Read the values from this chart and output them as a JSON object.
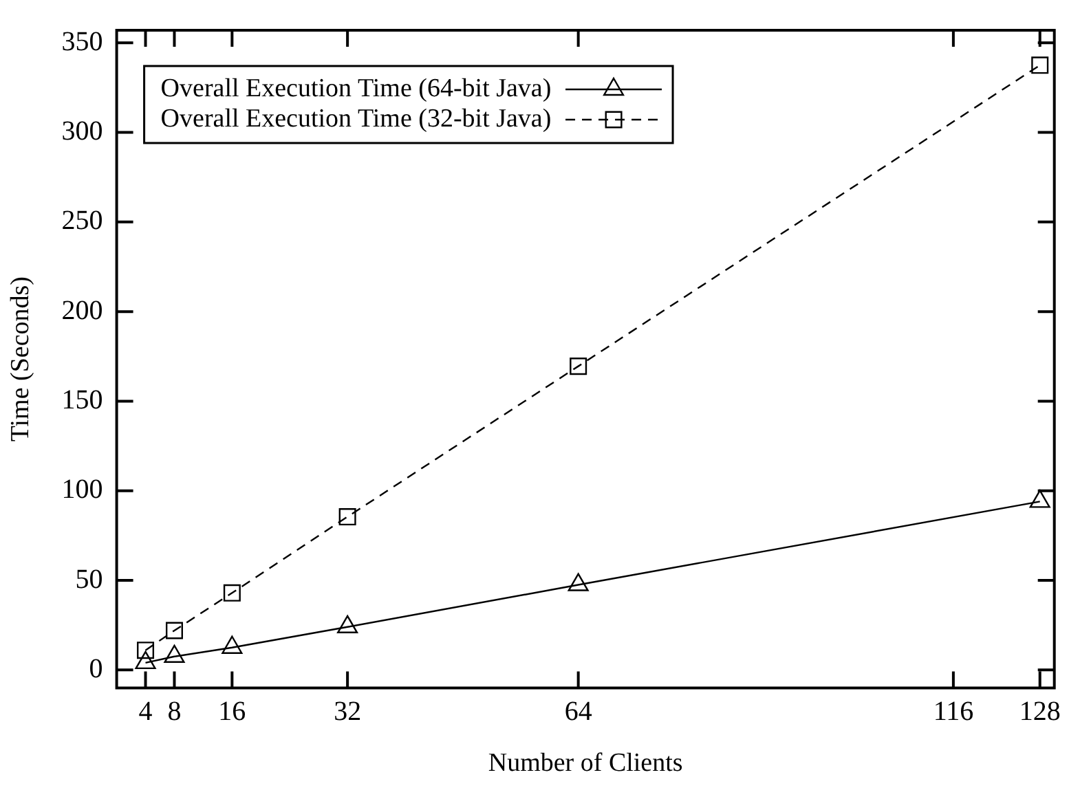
{
  "chart_data": {
    "type": "line",
    "xlabel": "Number of Clients",
    "ylabel": "Time (Seconds)",
    "x": [
      4,
      8,
      16,
      32,
      64,
      128
    ],
    "xlim": [
      0,
      130
    ],
    "xticks": [
      4,
      8,
      16,
      32,
      64,
      116,
      128
    ],
    "ylim": [
      -10,
      357
    ],
    "yticks": [
      0,
      50,
      100,
      150,
      200,
      250,
      300,
      350
    ],
    "grid": false,
    "legend": "top left",
    "series": [
      {
        "name": "Overall Execution Time (64-bit Java)",
        "color": "#000000",
        "marker": "triangle",
        "line_style": "solid",
        "values": [
          4,
          7.5,
          12.5,
          24,
          47.5,
          94
        ]
      },
      {
        "name": "Overall Execution Time (32-bit Java)",
        "color": "#000000",
        "marker": "square",
        "line_style": "dashed",
        "values": [
          11,
          22,
          43,
          85.5,
          169.5,
          337.5
        ]
      }
    ]
  }
}
